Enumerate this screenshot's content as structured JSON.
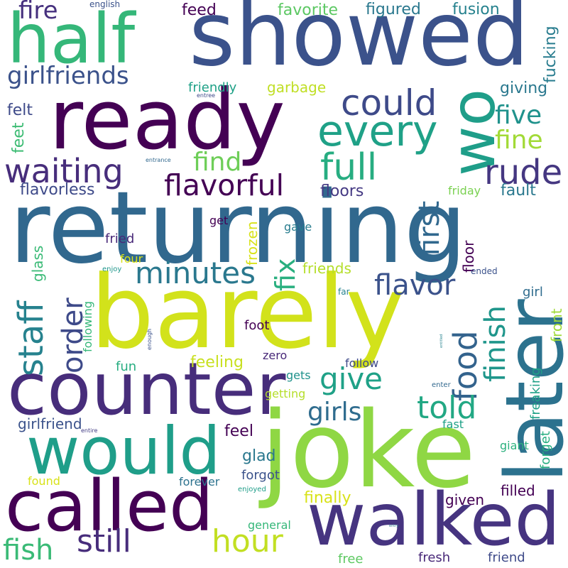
{
  "palette": {
    "dark_purple": "#440154",
    "indigo": "#482878",
    "blue": "#3e4a89",
    "steel_blue": "#31688e",
    "teal": "#26828e",
    "green_teal": "#1f9e89",
    "green": "#35b779",
    "light_green": "#6ece58",
    "lime": "#b5de2b",
    "yellow": "#d8e219"
  },
  "words": [
    {
      "text": "returning",
      "color": "#31688e"
    },
    {
      "text": "barely",
      "color": "#d2e21b"
    },
    {
      "text": "joke",
      "color": "#8fd744"
    },
    {
      "text": "showed",
      "color": "#3b528b"
    },
    {
      "text": "ready",
      "color": "#440154"
    },
    {
      "text": "later",
      "color": "#2c728e"
    },
    {
      "text": "counter",
      "color": "#472d7b"
    },
    {
      "text": "walked",
      "color": "#463480"
    },
    {
      "text": "called",
      "color": "#440154"
    },
    {
      "text": "would",
      "color": "#1f9e89"
    },
    {
      "text": "half",
      "color": "#35b779"
    },
    {
      "text": "wo",
      "color": "#1f9e89"
    },
    {
      "text": "every",
      "color": "#1fa187"
    },
    {
      "text": "could",
      "color": "#3e4a89"
    },
    {
      "text": "waiting",
      "color": "#472d7b"
    },
    {
      "text": "full",
      "color": "#27ad81"
    },
    {
      "text": "rude",
      "color": "#453781"
    },
    {
      "text": "flavorful",
      "color": "#440154"
    },
    {
      "text": "minutes",
      "color": "#2a788e"
    },
    {
      "text": "first",
      "color": "#31688e"
    },
    {
      "text": "staff",
      "color": "#26828e"
    },
    {
      "text": "order",
      "color": "#3e4a89"
    },
    {
      "text": "flavor",
      "color": "#3b528b"
    },
    {
      "text": "food",
      "color": "#33638d"
    },
    {
      "text": "finish",
      "color": "#1f968b"
    },
    {
      "text": "give",
      "color": "#1fa187"
    },
    {
      "text": "told",
      "color": "#22a884"
    },
    {
      "text": "girls",
      "color": "#2f6c8e"
    },
    {
      "text": "still",
      "color": "#472d7b"
    },
    {
      "text": "hour",
      "color": "#c2df23"
    },
    {
      "text": "fish",
      "color": "#3aba76"
    },
    {
      "text": "girlfriends",
      "color": "#3b528b"
    },
    {
      "text": "fire",
      "color": "#46307e"
    },
    {
      "text": "five",
      "color": "#20928c"
    },
    {
      "text": "fine",
      "color": "#a2da37"
    },
    {
      "text": "find",
      "color": "#6ece58"
    },
    {
      "text": "fix",
      "color": "#29af7f"
    },
    {
      "text": "english",
      "color": "#3b528b"
    },
    {
      "text": "feed",
      "color": "#440154"
    },
    {
      "text": "favorite",
      "color": "#5cc863"
    },
    {
      "text": "figured",
      "color": "#2a788e"
    },
    {
      "text": "fusion",
      "color": "#26828e"
    },
    {
      "text": "fucking",
      "color": "#287c8e"
    },
    {
      "text": "friendly",
      "color": "#1fa187"
    },
    {
      "text": "entree",
      "color": "#3e4a89"
    },
    {
      "text": "garbage",
      "color": "#c0df25"
    },
    {
      "text": "giving",
      "color": "#2a788e"
    },
    {
      "text": "felt",
      "color": "#3e4a89"
    },
    {
      "text": "feet",
      "color": "#3dbc74"
    },
    {
      "text": "entrance",
      "color": "#31688e"
    },
    {
      "text": "flavorless",
      "color": "#3e4a89"
    },
    {
      "text": "floors",
      "color": "#443983"
    },
    {
      "text": "friday",
      "color": "#7ad151"
    },
    {
      "text": "fault",
      "color": "#2a788e"
    },
    {
      "text": "get",
      "color": "#440154"
    },
    {
      "text": "gave",
      "color": "#287c8e"
    },
    {
      "text": "fried",
      "color": "#482878"
    },
    {
      "text": "glass",
      "color": "#3aba76"
    },
    {
      "text": "frozen",
      "color": "#d8e219"
    },
    {
      "text": "four",
      "color": "#d8e219"
    },
    {
      "text": "floor",
      "color": "#440154"
    },
    {
      "text": "friends",
      "color": "#b5de2b"
    },
    {
      "text": "enjoy",
      "color": "#1f968b"
    },
    {
      "text": "ended",
      "color": "#3b528b"
    },
    {
      "text": "following",
      "color": "#35b779"
    },
    {
      "text": "far",
      "color": "#26828e"
    },
    {
      "text": "girl",
      "color": "#2f6c8e"
    },
    {
      "text": "front",
      "color": "#a0da39"
    },
    {
      "text": "foot",
      "color": "#440154"
    },
    {
      "text": "enough",
      "color": "#3b528b"
    },
    {
      "text": "entitled",
      "color": "#26828e"
    },
    {
      "text": "zero",
      "color": "#482878"
    },
    {
      "text": "feeling",
      "color": "#c8e020"
    },
    {
      "text": "follow",
      "color": "#3e4a89"
    },
    {
      "text": "fun",
      "color": "#27ad81"
    },
    {
      "text": "gets",
      "color": "#20928c"
    },
    {
      "text": "getting",
      "color": "#b5de2b"
    },
    {
      "text": "enter",
      "color": "#31688e"
    },
    {
      "text": "freaking",
      "color": "#1fa187"
    },
    {
      "text": "forget",
      "color": "#27ad81"
    },
    {
      "text": "fast",
      "color": "#1fa187"
    },
    {
      "text": "girlfriend",
      "color": "#3b528b"
    },
    {
      "text": "entire",
      "color": "#433e85"
    },
    {
      "text": "feel",
      "color": "#440154"
    },
    {
      "text": "giant",
      "color": "#2cb17e"
    },
    {
      "text": "glad",
      "color": "#2a788e"
    },
    {
      "text": "forgot",
      "color": "#3b528b"
    },
    {
      "text": "found",
      "color": "#d8e219"
    },
    {
      "text": "forever",
      "color": "#2c728e"
    },
    {
      "text": "enjoyed",
      "color": "#1f9e89"
    },
    {
      "text": "filled",
      "color": "#440154"
    },
    {
      "text": "finally",
      "color": "#d8e219"
    },
    {
      "text": "given",
      "color": "#440154"
    },
    {
      "text": "general",
      "color": "#35b779"
    },
    {
      "text": "entry",
      "color": "#2a788e"
    },
    {
      "text": "free",
      "color": "#5ec962"
    },
    {
      "text": "fresh",
      "color": "#482878"
    },
    {
      "text": "friend",
      "color": "#3e4a89"
    }
  ]
}
